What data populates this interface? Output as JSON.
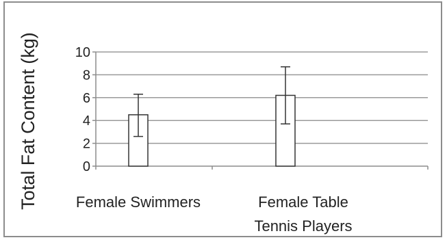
{
  "chart_data": {
    "type": "bar",
    "title": "",
    "xlabel": "",
    "ylabel": "Total Fat Content (kg)",
    "categories": [
      [
        "Female Swimmers"
      ],
      [
        "Female Table",
        "Tennis Players"
      ]
    ],
    "values": [
      4.5,
      6.2
    ],
    "error_low": [
      2.6,
      3.7
    ],
    "error_high": [
      6.3,
      8.7
    ],
    "ylim": [
      0,
      10
    ],
    "yticks": [
      0,
      2,
      4,
      6,
      8,
      10
    ],
    "ytick_labels": [
      "0",
      "2",
      "4",
      "6",
      "8",
      "10"
    ],
    "grid": true,
    "legend": "none",
    "colors": {
      "bar_fill": "#ffffff",
      "bar_stroke": "#333333",
      "error_bar": "#333333",
      "grid": "#9a9a9a",
      "axis": "#8c8c8c"
    }
  }
}
